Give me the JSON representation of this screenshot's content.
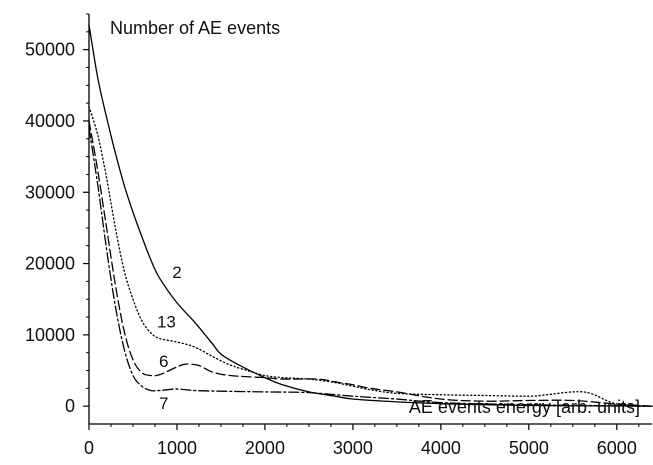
{
  "chart_data": {
    "type": "line",
    "title": "",
    "ylabel": "Number of AE events",
    "xlabel": "AE events energy [arb. units]",
    "xlim": [
      0,
      6400
    ],
    "ylim": [
      -2500,
      55000
    ],
    "grid": false,
    "x_ticks": [
      0,
      1000,
      2000,
      3000,
      4000,
      5000,
      6000
    ],
    "y_ticks": [
      0,
      10000,
      20000,
      30000,
      40000,
      50000
    ],
    "series": [
      {
        "name": "2",
        "style": "solid",
        "label_position": [
          1000,
          18000
        ],
        "points": [
          [
            0,
            53500
          ],
          [
            100,
            46000
          ],
          [
            200,
            40500
          ],
          [
            300,
            35500
          ],
          [
            400,
            31000
          ],
          [
            500,
            27200
          ],
          [
            600,
            23800
          ],
          [
            700,
            20600
          ],
          [
            800,
            18000
          ],
          [
            1000,
            14500
          ],
          [
            1200,
            11800
          ],
          [
            1400,
            8800
          ],
          [
            1500,
            7300
          ],
          [
            1700,
            5800
          ],
          [
            2000,
            4000
          ],
          [
            2200,
            3000
          ],
          [
            2500,
            2000
          ],
          [
            2800,
            1400
          ],
          [
            3000,
            1000
          ],
          [
            3500,
            600
          ],
          [
            4000,
            350
          ],
          [
            4500,
            200
          ],
          [
            5000,
            100
          ],
          [
            5500,
            50
          ],
          [
            6000,
            30
          ],
          [
            6400,
            0
          ]
        ]
      },
      {
        "name": "13",
        "style": "dotted",
        "label_position": [
          880,
          11000
        ],
        "points": [
          [
            0,
            42000
          ],
          [
            100,
            38000
          ],
          [
            200,
            32000
          ],
          [
            300,
            25000
          ],
          [
            400,
            19000
          ],
          [
            500,
            15000
          ],
          [
            600,
            12000
          ],
          [
            700,
            10300
          ],
          [
            800,
            9500
          ],
          [
            1000,
            9000
          ],
          [
            1200,
            8300
          ],
          [
            1400,
            7000
          ],
          [
            1600,
            5800
          ],
          [
            1800,
            5000
          ],
          [
            2000,
            4300
          ],
          [
            2200,
            4000
          ],
          [
            2500,
            3800
          ],
          [
            2800,
            3300
          ],
          [
            3000,
            2800
          ],
          [
            3200,
            2300
          ],
          [
            3500,
            1800
          ],
          [
            4000,
            1600
          ],
          [
            4500,
            1500
          ],
          [
            5000,
            1400
          ],
          [
            5200,
            1600
          ],
          [
            5500,
            2000
          ],
          [
            5700,
            1800
          ],
          [
            6000,
            300
          ],
          [
            6400,
            0
          ]
        ]
      },
      {
        "name": "6",
        "style": "dashed",
        "label_position": [
          850,
          5500
        ],
        "points": [
          [
            0,
            40000
          ],
          [
            100,
            33000
          ],
          [
            200,
            25000
          ],
          [
            300,
            17000
          ],
          [
            400,
            10500
          ],
          [
            500,
            6500
          ],
          [
            600,
            4700
          ],
          [
            700,
            4300
          ],
          [
            800,
            4400
          ],
          [
            1000,
            5500
          ],
          [
            1100,
            5900
          ],
          [
            1250,
            5700
          ],
          [
            1400,
            4800
          ],
          [
            1600,
            4300
          ],
          [
            2000,
            4000
          ],
          [
            2200,
            3800
          ],
          [
            2600,
            3800
          ],
          [
            2800,
            3400
          ],
          [
            3000,
            3000
          ],
          [
            3200,
            2500
          ],
          [
            3500,
            2000
          ],
          [
            4000,
            1000
          ],
          [
            4500,
            700
          ],
          [
            5000,
            800
          ],
          [
            5500,
            800
          ],
          [
            6000,
            300
          ],
          [
            6400,
            0
          ]
        ]
      },
      {
        "name": "7",
        "style": "dash-dot",
        "label_position": [
          850,
          -400
        ],
        "points": [
          [
            0,
            39000
          ],
          [
            100,
            31000
          ],
          [
            200,
            22000
          ],
          [
            300,
            14000
          ],
          [
            400,
            8000
          ],
          [
            500,
            4300
          ],
          [
            600,
            2800
          ],
          [
            700,
            2200
          ],
          [
            800,
            2200
          ],
          [
            1000,
            2400
          ],
          [
            1200,
            2200
          ],
          [
            1500,
            2100
          ],
          [
            2000,
            2000
          ],
          [
            2500,
            1900
          ],
          [
            3000,
            1400
          ],
          [
            3500,
            1000
          ],
          [
            4000,
            500
          ],
          [
            5000,
            200
          ],
          [
            6000,
            50
          ],
          [
            6400,
            0
          ]
        ]
      }
    ]
  }
}
